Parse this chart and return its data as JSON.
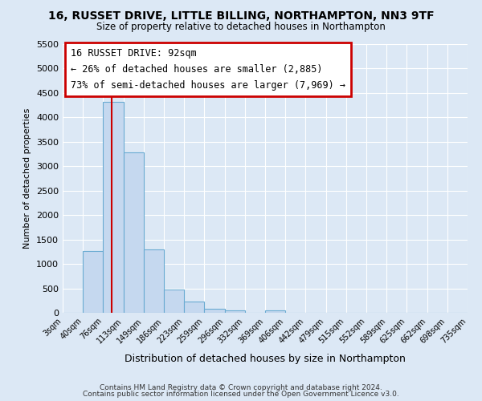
{
  "title": "16, RUSSET DRIVE, LITTLE BILLING, NORTHAMPTON, NN3 9TF",
  "subtitle": "Size of property relative to detached houses in Northampton",
  "xlabel": "Distribution of detached houses by size in Northampton",
  "ylabel": "Number of detached properties",
  "footer_line1": "Contains HM Land Registry data © Crown copyright and database right 2024.",
  "footer_line2": "Contains public sector information licensed under the Open Government Licence v3.0.",
  "bin_edges": [
    3,
    40,
    76,
    113,
    149,
    186,
    223,
    259,
    296,
    332,
    369,
    406,
    442,
    479,
    515,
    552,
    589,
    625,
    662,
    698,
    735
  ],
  "bin_labels": [
    "3sqm",
    "40sqm",
    "76sqm",
    "113sqm",
    "149sqm",
    "186sqm",
    "223sqm",
    "259sqm",
    "296sqm",
    "332sqm",
    "369sqm",
    "406sqm",
    "442sqm",
    "479sqm",
    "515sqm",
    "552sqm",
    "589sqm",
    "625sqm",
    "662sqm",
    "698sqm",
    "735sqm"
  ],
  "bar_heights": [
    0,
    1270,
    4320,
    3280,
    1290,
    480,
    225,
    80,
    55,
    0,
    55,
    0,
    0,
    0,
    0,
    0,
    0,
    0,
    0,
    0
  ],
  "bar_color": "#c5d8ef",
  "bar_edge_color": "#6aabd2",
  "bg_color": "#dce8f5",
  "grid_color": "#ffffff",
  "vline_x": 92,
  "vline_color": "#cc0000",
  "ylim": [
    0,
    5500
  ],
  "yticks": [
    0,
    500,
    1000,
    1500,
    2000,
    2500,
    3000,
    3500,
    4000,
    4500,
    5000,
    5500
  ],
  "annotation_title": "16 RUSSET DRIVE: 92sqm",
  "annotation_line1": "← 26% of detached houses are smaller (2,885)",
  "annotation_line2": "73% of semi-detached houses are larger (7,969) →",
  "annotation_box_color": "#ffffff",
  "annotation_box_edge": "#cc0000"
}
